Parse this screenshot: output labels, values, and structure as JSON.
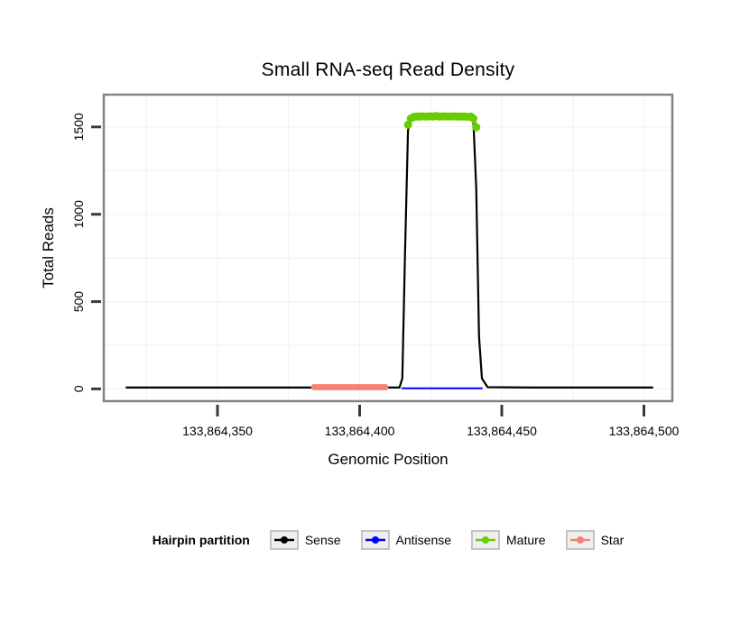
{
  "title": "Small RNA-seq Read Density",
  "axes": {
    "x_label": "Genomic Position",
    "y_label": "Total Reads",
    "x_ticks": [
      {
        "value": 133864350,
        "label": "133,864,350"
      },
      {
        "value": 133864400,
        "label": "133,864,400"
      },
      {
        "value": 133864450,
        "label": "133,864,450"
      },
      {
        "value": 133864500,
        "label": "133,864,500"
      }
    ],
    "y_ticks": [
      {
        "value": 0,
        "label": "0"
      },
      {
        "value": 500,
        "label": "500"
      },
      {
        "value": 1000,
        "label": "1000"
      },
      {
        "value": 1500,
        "label": "1500"
      }
    ]
  },
  "legend": {
    "title": "Hairpin partition",
    "items": [
      {
        "label": "Sense",
        "color": "#000000"
      },
      {
        "label": "Antisense",
        "color": "#0000ff"
      },
      {
        "label": "Mature",
        "color": "#66cd00"
      },
      {
        "label": "Star",
        "color": "#fa8072"
      }
    ]
  },
  "style": {
    "panel_border_color": "#848484",
    "grid_color": "#f0f0f0",
    "tick_color": "#3a3a3a"
  },
  "chart_data": {
    "type": "line",
    "title": "Small RNA-seq Read Density",
    "xlabel": "Genomic Position",
    "ylabel": "Total Reads",
    "xlim": [
      133864310,
      133864510
    ],
    "ylim": [
      -70,
      1685
    ],
    "grid": true,
    "legend_position": "bottom",
    "grid_x": [
      133864325,
      133864350,
      133864375,
      133864400,
      133864425,
      133864450,
      133864475,
      133864500
    ],
    "grid_y": [
      0,
      250,
      500,
      750,
      1000,
      1250,
      1500
    ],
    "series": [
      {
        "name": "Sense",
        "color": "#000000",
        "marker": false,
        "markersize": 0,
        "linewidth": 2.2,
        "points": [
          [
            133864318,
            8
          ],
          [
            133864380,
            8
          ],
          [
            133864414,
            8
          ],
          [
            133864415,
            60
          ],
          [
            133864416,
            800
          ],
          [
            133864417,
            1480
          ],
          [
            133864418,
            1548
          ],
          [
            133864419,
            1558
          ],
          [
            133864439,
            1558
          ],
          [
            133864440,
            1540
          ],
          [
            133864441,
            1150
          ],
          [
            133864442,
            300
          ],
          [
            133864443,
            60
          ],
          [
            133864445,
            10
          ],
          [
            133864460,
            8
          ],
          [
            133864503,
            8
          ]
        ]
      },
      {
        "name": "Antisense",
        "color": "#0000ff",
        "marker": false,
        "markersize": 0,
        "linewidth": 2,
        "points": [
          [
            133864415,
            4
          ],
          [
            133864443,
            4
          ]
        ]
      },
      {
        "name": "Mature",
        "color": "#66cd00",
        "marker": true,
        "markersize": 4.5,
        "linewidth": 4,
        "points": [
          [
            133864417,
            1513
          ],
          [
            133864418,
            1548
          ],
          [
            133864419,
            1557
          ],
          [
            133864420,
            1560
          ],
          [
            133864421,
            1559
          ],
          [
            133864422,
            1561
          ],
          [
            133864423,
            1560
          ],
          [
            133864424,
            1560
          ],
          [
            133864425,
            1561
          ],
          [
            133864426,
            1560
          ],
          [
            133864427,
            1562
          ],
          [
            133864428,
            1560
          ],
          [
            133864429,
            1560
          ],
          [
            133864430,
            1561
          ],
          [
            133864431,
            1560
          ],
          [
            133864432,
            1560
          ],
          [
            133864433,
            1561
          ],
          [
            133864434,
            1560
          ],
          [
            133864435,
            1560
          ],
          [
            133864436,
            1559
          ],
          [
            133864437,
            1560
          ],
          [
            133864438,
            1558
          ],
          [
            133864439,
            1560
          ],
          [
            133864440,
            1548
          ],
          [
            133864441,
            1498
          ]
        ]
      },
      {
        "name": "Star",
        "color": "#fa8072",
        "marker": true,
        "markersize": 3.5,
        "linewidth": 2.5,
        "points": [
          [
            133864384,
            10
          ],
          [
            133864385,
            10
          ],
          [
            133864386,
            10
          ],
          [
            133864387,
            10
          ],
          [
            133864388,
            10
          ],
          [
            133864389,
            10
          ],
          [
            133864390,
            10
          ],
          [
            133864391,
            10
          ],
          [
            133864392,
            10
          ],
          [
            133864393,
            10
          ],
          [
            133864394,
            10
          ],
          [
            133864395,
            10
          ],
          [
            133864396,
            10
          ],
          [
            133864397,
            10
          ],
          [
            133864398,
            10
          ],
          [
            133864399,
            10
          ],
          [
            133864400,
            10
          ],
          [
            133864401,
            10
          ],
          [
            133864402,
            10
          ],
          [
            133864403,
            10
          ],
          [
            133864404,
            10
          ],
          [
            133864405,
            10
          ],
          [
            133864406,
            10
          ],
          [
            133864407,
            10
          ],
          [
            133864408,
            10
          ],
          [
            133864409,
            10
          ]
        ]
      }
    ]
  }
}
